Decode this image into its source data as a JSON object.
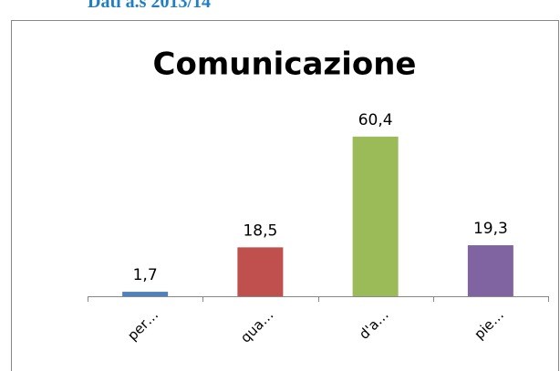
{
  "header": {
    "title": "Dati a.s 2013/14"
  },
  "chart_data": {
    "type": "bar",
    "title": "Comunicazione",
    "categories": [
      "per…",
      "qua…",
      "d'a…",
      "pie…"
    ],
    "values": [
      1.7,
      18.5,
      60.4,
      19.3
    ],
    "value_labels": [
      "1,7",
      "18,5",
      "60,4",
      "19,3"
    ],
    "colors": [
      "#4f81bd",
      "#c0504d",
      "#9bbb59",
      "#8064a2"
    ],
    "ylim": [
      0,
      70
    ]
  }
}
